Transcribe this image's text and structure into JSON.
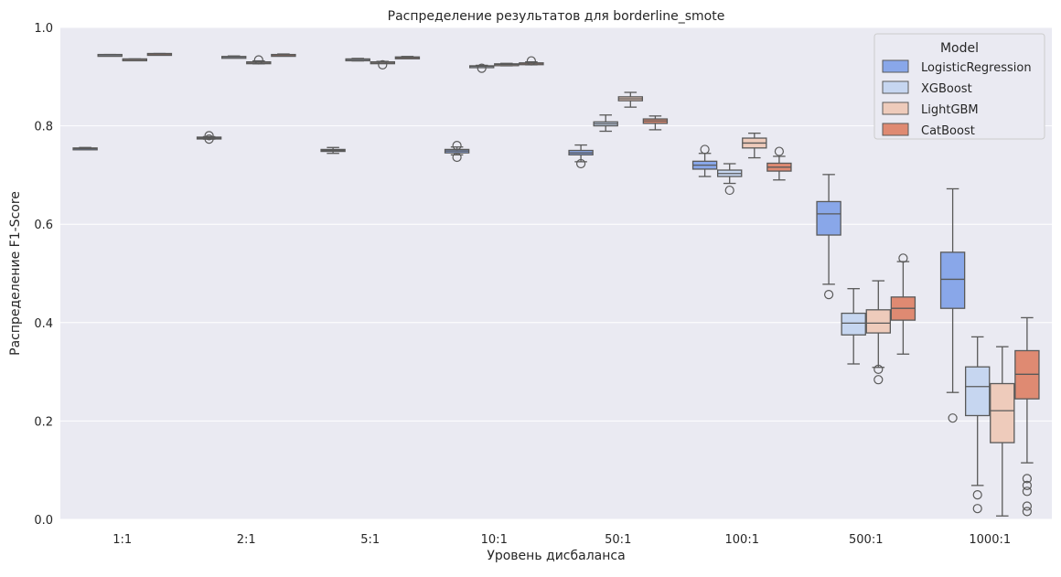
{
  "chart_data": {
    "type": "box",
    "title": "Распределение результатов для borderline_smote",
    "xlabel": "Уровень дисбаланса",
    "ylabel": "Распределение F1-Score",
    "ylim": [
      0,
      1
    ],
    "yticks": [
      "0.0",
      "0.2",
      "0.4",
      "0.6",
      "0.8",
      "1.0"
    ],
    "grid": true,
    "legend": {
      "title": "Model",
      "placement": "top-right"
    },
    "categories": [
      "1:1",
      "2:1",
      "5:1",
      "10:1",
      "50:1",
      "100:1",
      "500:1",
      "1000:1"
    ],
    "box_stats_order": [
      "whisker_low",
      "q1",
      "median",
      "q3",
      "whisker_high"
    ],
    "series": [
      {
        "name": "LogisticRegression",
        "color": "#89a7e9",
        "boxes": [
          [
            0.752,
            0.753,
            0.754,
            0.755,
            0.756
          ],
          [
            0.773,
            0.774,
            0.775,
            0.777,
            0.778
          ],
          [
            0.744,
            0.748,
            0.75,
            0.752,
            0.756
          ],
          [
            0.741,
            0.745,
            0.749,
            0.752,
            0.757
          ],
          [
            0.727,
            0.741,
            0.745,
            0.75,
            0.761
          ],
          [
            0.697,
            0.712,
            0.72,
            0.728,
            0.744
          ],
          [
            0.478,
            0.578,
            0.621,
            0.646,
            0.701
          ],
          [
            0.258,
            0.429,
            0.488,
            0.543,
            0.672
          ]
        ],
        "outliers": [
          [],
          [
            0.78,
            0.773
          ],
          [],
          [
            0.76,
            0.736
          ],
          [
            0.723
          ],
          [
            0.752
          ],
          [
            0.457
          ],
          [
            0.206
          ]
        ]
      },
      {
        "name": "XGBoost",
        "color": "#c6d6f0",
        "boxes": [
          [
            0.943,
            0.944,
            0.944,
            0.945,
            0.945
          ],
          [
            0.938,
            0.939,
            0.94,
            0.941,
            0.942
          ],
          [
            0.932,
            0.934,
            0.935,
            0.936,
            0.937
          ],
          [
            0.919,
            0.92,
            0.921,
            0.922,
            0.923
          ],
          [
            0.789,
            0.8,
            0.804,
            0.808,
            0.822
          ],
          [
            0.683,
            0.697,
            0.703,
            0.71,
            0.723
          ],
          [
            0.316,
            0.375,
            0.399,
            0.419,
            0.469
          ],
          [
            0.069,
            0.211,
            0.27,
            0.31,
            0.371
          ]
        ],
        "outliers": [
          [],
          [],
          [],
          [
            0.917
          ],
          [],
          [
            0.669
          ],
          [],
          [
            0.05,
            0.022
          ]
        ]
      },
      {
        "name": "LightGBM",
        "color": "#eecbbb",
        "boxes": [
          [
            0.934,
            0.935,
            0.935,
            0.936,
            0.936
          ],
          [
            0.926,
            0.928,
            0.929,
            0.93,
            0.932
          ],
          [
            0.927,
            0.928,
            0.929,
            0.93,
            0.931
          ],
          [
            0.922,
            0.924,
            0.925,
            0.926,
            0.927
          ],
          [
            0.838,
            0.851,
            0.855,
            0.859,
            0.868
          ],
          [
            0.735,
            0.755,
            0.765,
            0.775,
            0.785
          ],
          [
            0.309,
            0.379,
            0.399,
            0.426,
            0.485
          ],
          [
            0.007,
            0.156,
            0.221,
            0.276,
            0.351
          ]
        ],
        "outliers": [
          [],
          [
            0.934
          ],
          [
            0.924
          ],
          [],
          [],
          [],
          [
            0.305,
            0.284
          ],
          []
        ]
      },
      {
        "name": "CatBoost",
        "color": "#df8a72",
        "boxes": [
          [
            0.945,
            0.946,
            0.946,
            0.947,
            0.947
          ],
          [
            0.942,
            0.943,
            0.944,
            0.945,
            0.946
          ],
          [
            0.937,
            0.938,
            0.939,
            0.94,
            0.941
          ],
          [
            0.924,
            0.926,
            0.927,
            0.928,
            0.93
          ],
          [
            0.792,
            0.805,
            0.81,
            0.814,
            0.82
          ],
          [
            0.69,
            0.708,
            0.716,
            0.724,
            0.738
          ],
          [
            0.336,
            0.405,
            0.429,
            0.452,
            0.524
          ],
          [
            0.115,
            0.245,
            0.295,
            0.343,
            0.41
          ]
        ],
        "outliers": [
          [],
          [],
          [],
          [
            0.932
          ],
          [],
          [
            0.748
          ],
          [
            0.531
          ],
          [
            0.083,
            0.069,
            0.057,
            0.027,
            0.016
          ]
        ]
      }
    ]
  }
}
